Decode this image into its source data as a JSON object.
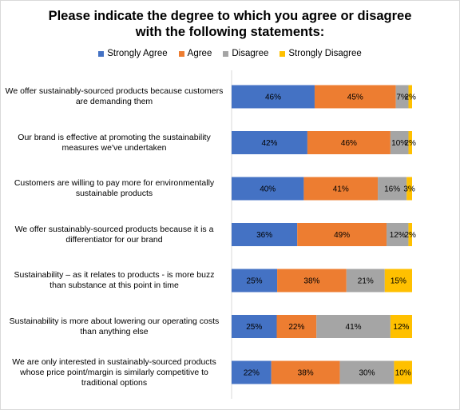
{
  "chart_data": {
    "type": "bar",
    "orientation": "horizontal",
    "stacked": "100%",
    "title": "Please indicate the degree to which you agree or disagree\nwith the following statements:",
    "legend_position": "top",
    "grid": false,
    "categories": [
      "We offer sustainably-sourced products because customers are demanding them",
      "Our brand is effective at promoting the sustainability measures we've undertaken",
      "Customers are willing to pay more for environmentally sustainable products",
      "We offer sustainably-sourced products because it is a differentiator for our brand",
      "Sustainability – as it relates to products - is more buzz than substance at this point in time",
      "Sustainability is more about lowering our operating costs than anything else",
      "We are only interested in sustainably-sourced products whose price point/margin is similarly competitive to traditional options"
    ],
    "series": [
      {
        "name": "Strongly Agree",
        "color": "#4472C4",
        "values": [
          46,
          42,
          40,
          36,
          25,
          25,
          22
        ]
      },
      {
        "name": "Agree",
        "color": "#ED7D31",
        "values": [
          45,
          46,
          41,
          49,
          38,
          22,
          38
        ]
      },
      {
        "name": "Disagree",
        "color": "#A5A5A5",
        "values": [
          7,
          10,
          16,
          12,
          21,
          41,
          30
        ]
      },
      {
        "name": "Strongly Disagree",
        "color": "#FFC000",
        "values": [
          2,
          2,
          3,
          2,
          15,
          12,
          10
        ]
      }
    ],
    "value_suffix": "%"
  }
}
